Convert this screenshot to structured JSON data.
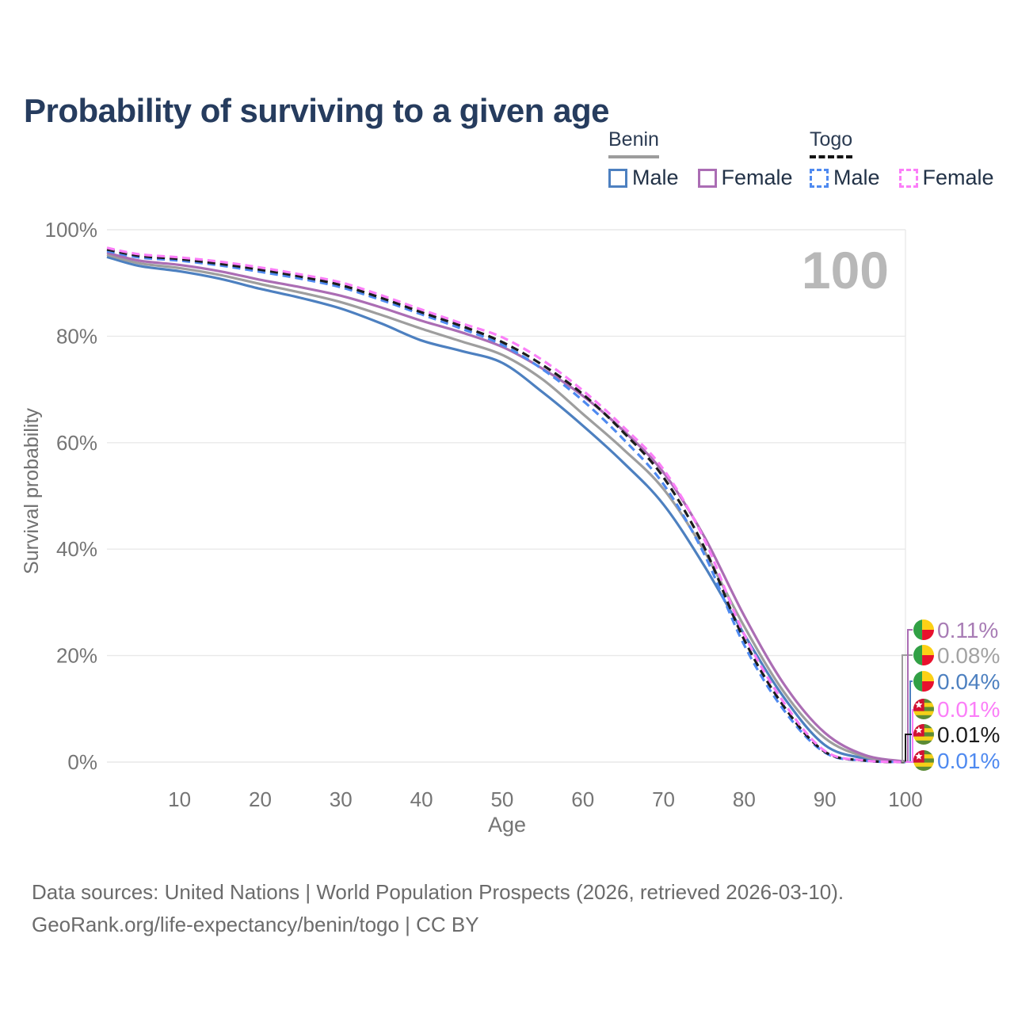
{
  "title": "Probability of surviving to a given age",
  "watermark": "100",
  "legend": {
    "groups": [
      {
        "label": "Benin",
        "underline": "solid",
        "items": [
          {
            "label": "Male",
            "color": "#4d80c0",
            "dashed": false
          },
          {
            "label": "Female",
            "color": "#ab6db4",
            "dashed": false
          }
        ]
      },
      {
        "label": "Togo",
        "underline": "dashed",
        "items": [
          {
            "label": "Male",
            "color": "#4f8af0",
            "dashed": true
          },
          {
            "label": "Female",
            "color": "#fb7ef8",
            "dashed": true
          }
        ]
      }
    ]
  },
  "chart_data": {
    "type": "line",
    "title": "Probability of surviving to a given age",
    "xlabel": "Age",
    "ylabel": "Survival probability",
    "xlim": [
      1,
      100
    ],
    "ylim": [
      0,
      100
    ],
    "grid": "horizontal",
    "x": [
      1,
      5,
      10,
      15,
      20,
      25,
      30,
      35,
      40,
      45,
      50,
      55,
      60,
      65,
      70,
      75,
      80,
      85,
      90,
      95,
      100
    ],
    "xticks": [
      10,
      20,
      30,
      40,
      50,
      60,
      70,
      80,
      90,
      100
    ],
    "yticks": [
      0,
      20,
      40,
      60,
      80,
      100
    ],
    "ytick_labels": [
      "0%",
      "20%",
      "40%",
      "60%",
      "80%",
      "100%"
    ],
    "series": [
      {
        "name": "Benin Male",
        "country": "Benin",
        "sex": "Male",
        "color": "#4d80c0",
        "label_color": "#4d80c0",
        "dashed": false,
        "flag": "benin",
        "end_label": "0.04%",
        "label_row": 2,
        "values": [
          94.9,
          93.2,
          92.2,
          90.8,
          88.9,
          87.2,
          85.2,
          82.4,
          79.2,
          77.2,
          75.0,
          69.5,
          63.2,
          56.3,
          48.4,
          37.0,
          24.0,
          12.0,
          3.2,
          0.7,
          0.04
        ]
      },
      {
        "name": "Benin",
        "country": "Benin",
        "sex": "Both",
        "color": "#9e9e9e",
        "label_color": "#a3a3a3",
        "dashed": false,
        "flag": "benin",
        "end_label": "0.08%",
        "label_row": 1,
        "values": [
          95.3,
          93.7,
          92.8,
          91.5,
          89.8,
          88.2,
          86.4,
          84.0,
          81.4,
          79.0,
          76.5,
          71.9,
          65.4,
          58.8,
          51.3,
          39.8,
          25.5,
          13.0,
          4.5,
          1.0,
          0.08
        ]
      },
      {
        "name": "Benin Female",
        "country": "Benin",
        "sex": "Female",
        "color": "#ab6db4",
        "label_color": "#a87cb5",
        "dashed": false,
        "flag": "benin",
        "end_label": "0.11%",
        "label_row": 0,
        "values": [
          95.7,
          94.2,
          93.4,
          92.2,
          90.6,
          89.2,
          87.6,
          85.4,
          82.9,
          80.7,
          78.0,
          73.9,
          68.8,
          62.3,
          54.4,
          42.5,
          27.5,
          14.5,
          5.5,
          1.3,
          0.11
        ]
      },
      {
        "name": "Togo Male",
        "country": "Togo",
        "sex": "Male",
        "color": "#4f8af0",
        "label_color": "#4f8af0",
        "dashed": true,
        "flag": "togo",
        "end_label": "0.01%",
        "label_row": 5,
        "values": [
          96.0,
          94.8,
          94.2,
          93.3,
          92.1,
          90.8,
          89.2,
          86.8,
          84.1,
          81.4,
          78.4,
          73.8,
          67.9,
          60.7,
          52.2,
          39.2,
          22.0,
          9.6,
          1.8,
          0.25,
          0.01
        ]
      },
      {
        "name": "Togo",
        "country": "Togo",
        "sex": "Both",
        "color": "#1c1c1c",
        "label_color": "#1c1c1c",
        "dashed": true,
        "flag": "togo",
        "end_label": "0.01%",
        "label_row": 4,
        "values": [
          96.3,
          95.1,
          94.5,
          93.6,
          92.5,
          91.2,
          89.6,
          87.2,
          84.5,
          81.9,
          78.9,
          74.6,
          69.1,
          62.0,
          53.5,
          40.5,
          23.0,
          10.3,
          1.95,
          0.28,
          0.01
        ]
      },
      {
        "name": "Togo Female",
        "country": "Togo",
        "sex": "Female",
        "color": "#fb7ef8",
        "label_color": "#fb7ef8",
        "dashed": true,
        "flag": "togo",
        "end_label": "0.01%",
        "label_row": 3,
        "values": [
          96.6,
          95.4,
          94.8,
          94.0,
          92.9,
          91.6,
          90.1,
          87.7,
          85.0,
          82.4,
          79.8,
          75.5,
          69.8,
          63.0,
          55.0,
          42.0,
          24.0,
          11.0,
          2.1,
          0.3,
          0.01
        ]
      }
    ],
    "legend_position": "top-right",
    "watermark": "100"
  },
  "flags": {
    "benin": {
      "green": "#31a045",
      "yellow": "#fcd116",
      "red": "#e8112d"
    },
    "togo": {
      "green": "#5b8b35",
      "yellow": "#f5d018",
      "red": "#d21034",
      "star": "#ffffff"
    }
  },
  "colors": {
    "title": "#263c5e",
    "axis_text": "#757575",
    "gridline": "#e9e9e9",
    "watermark": "#b8b8b8",
    "footer": "#6b6b6b"
  },
  "footer": {
    "line1": "Data sources: United Nations | World Population Prospects (2026, retrieved 2026-03-10).",
    "line2": "GeoRank.org/life-expectancy/benin/togo | CC BY"
  }
}
